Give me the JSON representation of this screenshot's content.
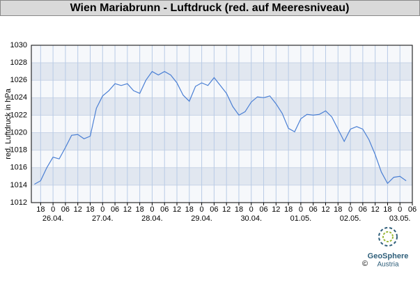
{
  "chart_data": {
    "type": "line",
    "title": "Wien Mariabrunn - Luftdruck (red. auf Meeresniveau)",
    "y_label": "red. Luftdruck in hPa",
    "x": [
      "25.04. 15:00",
      "25.04. 18:00",
      "25.04. 21:00",
      "26.04. 00:00",
      "26.04. 03:00",
      "26.04. 06:00",
      "26.04. 09:00",
      "26.04. 12:00",
      "26.04. 15:00",
      "26.04. 18:00",
      "26.04. 21:00",
      "27.04. 00:00",
      "27.04. 03:00",
      "27.04. 06:00",
      "27.04. 09:00",
      "27.04. 12:00",
      "27.04. 15:00",
      "27.04. 18:00",
      "27.04. 21:00",
      "28.04. 00:00",
      "28.04. 03:00",
      "28.04. 06:00",
      "28.04. 09:00",
      "28.04. 12:00",
      "28.04. 15:00",
      "28.04. 18:00",
      "28.04. 21:00",
      "29.04. 00:00",
      "29.04. 03:00",
      "29.04. 06:00",
      "29.04. 09:00",
      "29.04. 12:00",
      "29.04. 15:00",
      "29.04. 18:00",
      "29.04. 21:00",
      "30.04. 00:00",
      "30.04. 03:00",
      "30.04. 06:00",
      "30.04. 09:00",
      "30.04. 12:00",
      "30.04. 15:00",
      "30.04. 18:00",
      "30.04. 21:00",
      "01.05. 00:00",
      "01.05. 03:00",
      "01.05. 06:00",
      "01.05. 09:00",
      "01.05. 12:00",
      "01.05. 15:00",
      "01.05. 18:00",
      "01.05. 21:00",
      "02.05. 00:00",
      "02.05. 03:00",
      "02.05. 06:00",
      "02.05. 09:00",
      "02.05. 12:00",
      "02.05. 15:00",
      "02.05. 18:00",
      "02.05. 21:00",
      "03.05. 00:00",
      "03.05. 03:00"
    ],
    "series": [
      {
        "name": "Luftdruck",
        "color": "#4a7fd4",
        "values": [
          1014.1,
          1014.5,
          1016.0,
          1017.2,
          1017.0,
          1018.3,
          1019.7,
          1019.8,
          1019.3,
          1019.6,
          1022.8,
          1024.2,
          1024.8,
          1025.6,
          1025.4,
          1025.6,
          1024.8,
          1024.5,
          1026.0,
          1027.0,
          1026.6,
          1027.0,
          1026.6,
          1025.7,
          1024.3,
          1023.6,
          1025.3,
          1025.7,
          1025.4,
          1026.3,
          1025.4,
          1024.5,
          1023.0,
          1022.0,
          1022.4,
          1023.5,
          1024.1,
          1024.0,
          1024.2,
          1023.3,
          1022.2,
          1020.5,
          1020.1,
          1021.6,
          1022.1,
          1022.0,
          1022.1,
          1022.5,
          1021.8,
          1020.4,
          1019.0,
          1020.4,
          1020.7,
          1020.4,
          1019.2,
          1017.5,
          1015.5,
          1014.2,
          1014.9,
          1015.0,
          1014.5
        ]
      }
    ],
    "xlim": [
      "25.04. 13:30",
      "03.05. 06:00"
    ],
    "xticks": [
      {
        "value": "25.04. 18:00",
        "label": "18"
      },
      {
        "value": "26.04. 00:00",
        "label": "0"
      },
      {
        "value": "26.04. 06:00",
        "label": "06"
      },
      {
        "value": "26.04. 12:00",
        "label": "12"
      },
      {
        "value": "26.04. 18:00",
        "label": "18"
      },
      {
        "value": "27.04. 00:00",
        "label": "0"
      },
      {
        "value": "27.04. 06:00",
        "label": "06"
      },
      {
        "value": "27.04. 12:00",
        "label": "12"
      },
      {
        "value": "27.04. 18:00",
        "label": "18"
      },
      {
        "value": "28.04. 00:00",
        "label": "0"
      },
      {
        "value": "28.04. 06:00",
        "label": "06"
      },
      {
        "value": "28.04. 12:00",
        "label": "12"
      },
      {
        "value": "28.04. 18:00",
        "label": "18"
      },
      {
        "value": "29.04. 00:00",
        "label": "0"
      },
      {
        "value": "29.04. 06:00",
        "label": "06"
      },
      {
        "value": "29.04. 12:00",
        "label": "12"
      },
      {
        "value": "29.04. 18:00",
        "label": "18"
      },
      {
        "value": "30.04. 00:00",
        "label": "0"
      },
      {
        "value": "30.04. 06:00",
        "label": "06"
      },
      {
        "value": "30.04. 12:00",
        "label": "12"
      },
      {
        "value": "30.04. 18:00",
        "label": "18"
      },
      {
        "value": "01.05. 00:00",
        "label": "0"
      },
      {
        "value": "01.05. 06:00",
        "label": "06"
      },
      {
        "value": "01.05. 12:00",
        "label": "12"
      },
      {
        "value": "01.05. 18:00",
        "label": "18"
      },
      {
        "value": "02.05. 00:00",
        "label": "0"
      },
      {
        "value": "02.05. 06:00",
        "label": "06"
      },
      {
        "value": "02.05. 12:00",
        "label": "12"
      },
      {
        "value": "02.05. 18:00",
        "label": "18"
      },
      {
        "value": "03.05. 00:00",
        "label": "0"
      },
      {
        "value": "03.05. 06:00",
        "label": "06"
      }
    ],
    "date_labels": [
      {
        "value": "26.04. 00:00",
        "label": "26.04."
      },
      {
        "value": "27.04. 00:00",
        "label": "27.04."
      },
      {
        "value": "28.04. 00:00",
        "label": "28.04."
      },
      {
        "value": "29.04. 00:00",
        "label": "29.04."
      },
      {
        "value": "30.04. 00:00",
        "label": "30.04."
      },
      {
        "value": "01.05. 00:00",
        "label": "01.05."
      },
      {
        "value": "02.05. 00:00",
        "label": "02.05."
      },
      {
        "value": "03.05. 00:00",
        "label": "03.05."
      }
    ],
    "ylim": [
      1012,
      1030
    ],
    "yticks": [
      1012,
      1014,
      1016,
      1018,
      1020,
      1022,
      1024,
      1026,
      1028,
      1030
    ],
    "grid": true
  },
  "footer": {
    "logo_name": "GeoSphere",
    "logo_sub": "Austria",
    "copyright": "©"
  }
}
